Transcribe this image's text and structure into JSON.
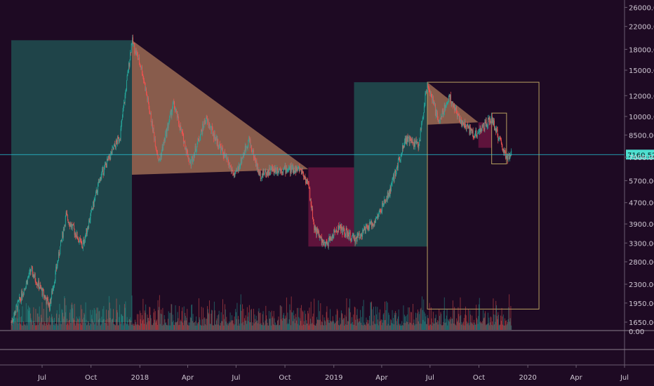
{
  "colors": {
    "background": "#1e0a23",
    "up": "#26a69a",
    "down": "#ef5350",
    "axis_text": "#d0c8d4",
    "box_green": "#1f4a4e",
    "box_red": "#6a1540",
    "triangle": "#e0a070",
    "rect_outline": "#b8a060",
    "price_line": "#26c6da"
  },
  "chart_data": {
    "type": "candlestick",
    "title": "",
    "y_axis": {
      "scale": "log",
      "ticks": [
        "26000.00",
        "22000.00",
        "18000.00",
        "15000.00",
        "12000.00",
        "10000.00",
        "8500.00",
        "7000.00",
        "5700.00",
        "4700.00",
        "3900.00",
        "3300.00",
        "2800.00",
        "2300.00",
        "1950.00",
        "1650.00"
      ],
      "tick_values": [
        26000,
        22000,
        18000,
        15000,
        12000,
        10000,
        8500,
        7000,
        5700,
        4700,
        3900,
        3300,
        2800,
        2300,
        1950,
        1650
      ]
    },
    "volume_axis": {
      "ticks": [
        "0.00"
      ]
    },
    "x_axis": {
      "labels": [
        "Jul",
        "Oct",
        "2018",
        "Apr",
        "Jul",
        "Oct",
        "2019",
        "Apr",
        "Jul",
        "Oct",
        "2020",
        "Apr",
        "Jul"
      ],
      "label_dates": [
        "2017-07-01",
        "2017-10-01",
        "2018-01-01",
        "2018-04-01",
        "2018-07-01",
        "2018-10-01",
        "2019-01-01",
        "2019-04-01",
        "2019-07-01",
        "2019-10-01",
        "2020-01-01",
        "2020-04-01",
        "2020-07-01"
      ],
      "range": [
        "2017-05-04",
        "2020-07-01"
      ]
    },
    "current_price": {
      "label": "7160.52",
      "value": 7160.52
    },
    "price_path": [
      [
        "2017-05-04",
        1650
      ],
      [
        "2017-06-10",
        2600
      ],
      [
        "2017-07-15",
        1900
      ],
      [
        "2017-08-15",
        4200
      ],
      [
        "2017-09-15",
        3200
      ],
      [
        "2017-10-20",
        6000
      ],
      [
        "2017-11-25",
        8500
      ],
      [
        "2017-12-17",
        19500
      ],
      [
        "2018-01-05",
        15000
      ],
      [
        "2018-02-06",
        6700
      ],
      [
        "2018-03-05",
        11200
      ],
      [
        "2018-04-06",
        6600
      ],
      [
        "2018-05-05",
        9800
      ],
      [
        "2018-06-29",
        5900
      ],
      [
        "2018-07-25",
        8200
      ],
      [
        "2018-08-14",
        6000
      ],
      [
        "2018-09-10",
        6300
      ],
      [
        "2018-10-31",
        6300
      ],
      [
        "2018-11-14",
        5500
      ],
      [
        "2018-11-25",
        3800
      ],
      [
        "2018-12-15",
        3200
      ],
      [
        "2019-01-10",
        3800
      ],
      [
        "2019-02-08",
        3400
      ],
      [
        "2019-03-20",
        4000
      ],
      [
        "2019-04-15",
        5100
      ],
      [
        "2019-05-15",
        8200
      ],
      [
        "2019-06-10",
        7800
      ],
      [
        "2019-06-26",
        13500
      ],
      [
        "2019-07-17",
        9500
      ],
      [
        "2019-08-06",
        11900
      ],
      [
        "2019-08-29",
        9500
      ],
      [
        "2019-09-24",
        8500
      ],
      [
        "2019-10-25",
        9800
      ],
      [
        "2019-11-22",
        6900
      ],
      [
        "2019-12-01",
        7160
      ]
    ],
    "annotations": [
      {
        "kind": "box",
        "color": "green",
        "x0": "2017-05-04",
        "x1": "2017-12-17",
        "y0": 1650,
        "y1": 19500
      },
      {
        "kind": "triangle",
        "color": "orange",
        "points": [
          [
            "2017-12-17",
            19500
          ],
          [
            "2017-12-17",
            6000
          ],
          [
            "2018-11-14",
            6300
          ]
        ]
      },
      {
        "kind": "box",
        "color": "red",
        "x0": "2018-11-14",
        "x1": "2019-02-08",
        "y0": 3200,
        "y1": 6400
      },
      {
        "kind": "box",
        "color": "green",
        "x0": "2019-02-08",
        "x1": "2019-06-26",
        "y0": 3200,
        "y1": 13500
      },
      {
        "kind": "triangle",
        "color": "orange",
        "points": [
          [
            "2019-06-26",
            13500
          ],
          [
            "2019-06-26",
            9300
          ],
          [
            "2019-09-30",
            9500
          ]
        ]
      },
      {
        "kind": "box",
        "color": "red",
        "x0": "2019-09-30",
        "x1": "2019-10-25",
        "y0": 7600,
        "y1": 9500
      },
      {
        "kind": "outline",
        "color": "gold",
        "x0": "2019-06-26",
        "x1": "2020-01-22",
        "y0": 1850,
        "y1": 13500
      },
      {
        "kind": "outline",
        "color": "gold",
        "x0": "2019-10-25",
        "x1": "2019-11-22",
        "y0": 6600,
        "y1": 10300
      }
    ]
  }
}
